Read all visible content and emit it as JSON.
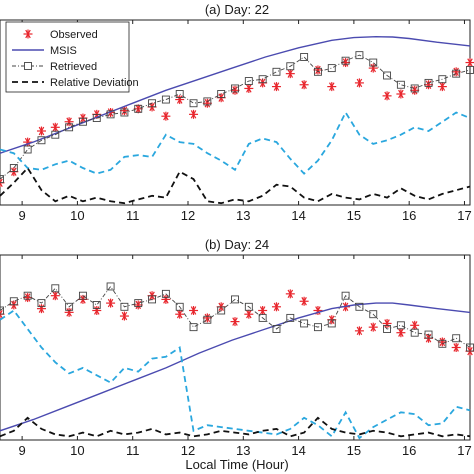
{
  "colors": {
    "observed": "#e8262d",
    "msis": "#4b4bb0",
    "retrieved": "#444444",
    "deviation_a": "#2aa7de",
    "deviation_b": "#111111",
    "axes": "#222222"
  },
  "chart_data": [
    {
      "type": "line",
      "title": "(a) Day: 22",
      "xlabel": "",
      "ylabel": "",
      "xlim": [
        8.6,
        17.1
      ],
      "ylim": [
        0,
        1
      ],
      "xticks": [
        9,
        10,
        11,
        12,
        13,
        14,
        15,
        16,
        17
      ],
      "xtick_labels": [
        "9",
        "10",
        "11",
        "12",
        "13",
        "14",
        "15",
        "16",
        "17"
      ],
      "grid": false,
      "legend": {
        "placement": "top-left",
        "entries": [
          "Observed",
          "MSIS",
          "Retrieved",
          "Relative Deviation"
        ]
      },
      "series": [
        {
          "name": "Observed",
          "style": "asterisk",
          "x": [
            8.6,
            8.85,
            9.1,
            9.35,
            9.6,
            9.85,
            10.1,
            10.35,
            10.6,
            10.85,
            11.1,
            11.35,
            11.6,
            11.85,
            12.1,
            12.35,
            12.6,
            12.85,
            13.1,
            13.35,
            13.6,
            13.85,
            14.1,
            14.35,
            14.6,
            14.85,
            15.1,
            15.35,
            15.6,
            15.85,
            16.1,
            16.35,
            16.6,
            16.85,
            17.1
          ],
          "y": [
            0.12,
            0.18,
            0.34,
            0.4,
            0.42,
            0.45,
            0.47,
            0.49,
            0.5,
            0.51,
            0.52,
            0.53,
            0.48,
            0.57,
            0.49,
            0.55,
            0.58,
            0.62,
            0.63,
            0.66,
            0.64,
            0.71,
            0.65,
            0.73,
            0.64,
            0.77,
            0.66,
            0.74,
            0.59,
            0.6,
            0.62,
            0.65,
            0.64,
            0.72,
            0.77
          ]
        },
        {
          "name": "MSIS",
          "style": "solid",
          "x": [
            8.6,
            9.2,
            9.8,
            10.4,
            11.0,
            11.6,
            12.2,
            12.8,
            13.4,
            14.0,
            14.6,
            15.0,
            15.4,
            15.7,
            16.0,
            16.5,
            17.1
          ],
          "y": [
            0.28,
            0.34,
            0.41,
            0.48,
            0.55,
            0.62,
            0.68,
            0.74,
            0.8,
            0.85,
            0.89,
            0.905,
            0.91,
            0.908,
            0.9,
            0.88,
            0.86
          ]
        },
        {
          "name": "Retrieved",
          "style": "dash-dot-square",
          "x": [
            8.6,
            8.85,
            9.1,
            9.35,
            9.6,
            9.85,
            10.1,
            10.35,
            10.6,
            10.85,
            11.1,
            11.35,
            11.6,
            11.85,
            12.1,
            12.35,
            12.6,
            12.85,
            13.1,
            13.35,
            13.6,
            13.85,
            14.1,
            14.35,
            14.6,
            14.85,
            15.1,
            15.35,
            15.6,
            15.85,
            16.1,
            16.35,
            16.6,
            16.85,
            17.1
          ],
          "y": [
            0.14,
            0.2,
            0.3,
            0.35,
            0.38,
            0.42,
            0.45,
            0.47,
            0.49,
            0.5,
            0.52,
            0.55,
            0.57,
            0.6,
            0.55,
            0.56,
            0.6,
            0.63,
            0.67,
            0.68,
            0.72,
            0.75,
            0.8,
            0.72,
            0.74,
            0.78,
            0.81,
            0.77,
            0.7,
            0.65,
            0.63,
            0.66,
            0.68,
            0.71,
            0.73
          ]
        },
        {
          "name": "Relative Deviation",
          "style": "dashed",
          "color_key": "deviation_a",
          "x": [
            8.6,
            8.85,
            9.1,
            9.35,
            9.6,
            9.85,
            10.1,
            10.35,
            10.6,
            10.85,
            11.1,
            11.35,
            11.6,
            11.85,
            12.1,
            12.35,
            12.6,
            12.85,
            13.1,
            13.35,
            13.6,
            13.85,
            14.1,
            14.35,
            14.6,
            14.85,
            15.1,
            15.35,
            15.6,
            15.85,
            16.1,
            16.35,
            16.6,
            16.85,
            17.1
          ],
          "y": [
            0.3,
            0.28,
            0.2,
            0.19,
            0.22,
            0.24,
            0.2,
            0.17,
            0.19,
            0.26,
            0.27,
            0.26,
            0.38,
            0.34,
            0.33,
            0.28,
            0.24,
            0.19,
            0.33,
            0.36,
            0.34,
            0.25,
            0.17,
            0.24,
            0.35,
            0.5,
            0.38,
            0.33,
            0.35,
            0.38,
            0.42,
            0.4,
            0.45,
            0.5,
            0.47
          ]
        },
        {
          "name": "Relative Deviation",
          "style": "dashed",
          "color_key": "deviation_b",
          "x": [
            8.6,
            8.85,
            9.1,
            9.35,
            9.6,
            9.85,
            10.1,
            10.35,
            10.6,
            10.85,
            11.1,
            11.35,
            11.6,
            11.85,
            12.1,
            12.35,
            12.6,
            12.85,
            13.1,
            13.35,
            13.6,
            13.85,
            14.1,
            14.35,
            14.6,
            14.85,
            15.1,
            15.35,
            15.6,
            15.85,
            16.1,
            16.35,
            16.6,
            16.85,
            17.1
          ],
          "y": [
            0.05,
            0.12,
            0.2,
            0.08,
            0.02,
            0.05,
            0.02,
            0.04,
            0.02,
            0.01,
            0.03,
            0.05,
            0.04,
            0.18,
            0.14,
            0.02,
            0.01,
            0.03,
            0.02,
            0.05,
            0.11,
            0.1,
            0.04,
            0.02,
            0.06,
            0.04,
            0.03,
            0.06,
            0.04,
            0.09,
            0.05,
            0.03,
            0.06,
            0.08,
            0.1
          ]
        }
      ]
    },
    {
      "type": "line",
      "title": "(b) Day: 24",
      "xlabel": "Local Time (Hour)",
      "ylabel": "",
      "xlim": [
        8.6,
        17.1
      ],
      "ylim": [
        0,
        1
      ],
      "xticks": [
        9,
        10,
        11,
        12,
        13,
        14,
        15,
        16,
        17
      ],
      "xtick_labels": [
        "9",
        "10",
        "11",
        "12",
        "13",
        "14",
        "15",
        "16",
        "17"
      ],
      "grid": false,
      "series": [
        {
          "name": "Observed",
          "style": "asterisk",
          "x": [
            8.6,
            8.85,
            9.1,
            9.35,
            9.6,
            9.85,
            10.1,
            10.35,
            10.6,
            10.85,
            11.1,
            11.35,
            11.6,
            11.85,
            12.1,
            12.35,
            12.6,
            12.85,
            13.1,
            13.35,
            13.6,
            13.85,
            14.1,
            14.35,
            14.6,
            14.85,
            15.1,
            15.35,
            15.6,
            15.85,
            16.1,
            16.35,
            16.6,
            16.85,
            17.1
          ],
          "y": [
            0.68,
            0.73,
            0.77,
            0.71,
            0.78,
            0.69,
            0.76,
            0.7,
            0.74,
            0.67,
            0.73,
            0.78,
            0.76,
            0.68,
            0.7,
            0.66,
            0.72,
            0.64,
            0.68,
            0.7,
            0.72,
            0.79,
            0.75,
            0.7,
            0.65,
            0.72,
            0.59,
            0.61,
            0.63,
            0.58,
            0.62,
            0.55,
            0.53,
            0.5,
            0.48
          ]
        },
        {
          "name": "MSIS",
          "style": "solid",
          "x": [
            8.6,
            9.2,
            9.8,
            10.4,
            11.0,
            11.6,
            12.2,
            12.8,
            13.4,
            14.0,
            14.6,
            15.0,
            15.4,
            15.7,
            16.0,
            16.5,
            17.1
          ],
          "y": [
            0.05,
            0.11,
            0.18,
            0.25,
            0.32,
            0.39,
            0.47,
            0.54,
            0.6,
            0.66,
            0.71,
            0.73,
            0.74,
            0.74,
            0.73,
            0.71,
            0.69
          ]
        },
        {
          "name": "Retrieved",
          "style": "dash-dot-square",
          "x": [
            8.6,
            8.85,
            9.1,
            9.35,
            9.6,
            9.85,
            10.1,
            10.35,
            10.6,
            10.85,
            11.1,
            11.35,
            11.6,
            11.85,
            12.1,
            12.35,
            12.6,
            12.85,
            13.1,
            13.35,
            13.6,
            13.85,
            14.1,
            14.35,
            14.6,
            14.85,
            15.1,
            15.35,
            15.6,
            15.85,
            16.1,
            16.35,
            16.6,
            16.85,
            17.1
          ],
          "y": [
            0.7,
            0.75,
            0.78,
            0.74,
            0.82,
            0.72,
            0.78,
            0.73,
            0.83,
            0.72,
            0.74,
            0.76,
            0.79,
            0.72,
            0.61,
            0.65,
            0.7,
            0.76,
            0.72,
            0.66,
            0.6,
            0.66,
            0.63,
            0.61,
            0.63,
            0.78,
            0.72,
            0.68,
            0.6,
            0.62,
            0.58,
            0.57,
            0.52,
            0.55,
            0.5
          ]
        },
        {
          "name": "Relative Deviation",
          "style": "dashed",
          "color_key": "deviation_a",
          "x": [
            8.6,
            8.85,
            9.1,
            9.35,
            9.6,
            9.85,
            10.1,
            10.35,
            10.6,
            10.85,
            11.1,
            11.35,
            11.6,
            11.85,
            12.1,
            12.35,
            12.6,
            12.85,
            13.1,
            13.35,
            13.6,
            13.85,
            14.1,
            14.35,
            14.6,
            14.85,
            15.1,
            15.35,
            15.6,
            15.85,
            16.1,
            16.35,
            16.6,
            16.85,
            17.1
          ],
          "y": [
            0.65,
            0.7,
            0.6,
            0.5,
            0.42,
            0.36,
            0.39,
            0.35,
            0.31,
            0.39,
            0.37,
            0.44,
            0.45,
            0.5,
            0.05,
            0.08,
            0.07,
            0.06,
            0.05,
            0.04,
            0.03,
            0.06,
            0.12,
            0.08,
            0.02,
            0.15,
            0.01,
            0.07,
            0.11,
            0.15,
            0.14,
            0.08,
            0.09,
            0.18,
            0.16
          ]
        },
        {
          "name": "Relative Deviation",
          "style": "dashed",
          "color_key": "deviation_b",
          "x": [
            8.6,
            8.85,
            9.1,
            9.35,
            9.6,
            9.85,
            10.1,
            10.35,
            10.6,
            10.85,
            11.1,
            11.35,
            11.6,
            11.85,
            12.1,
            12.35,
            12.6,
            12.85,
            13.1,
            13.35,
            13.6,
            13.85,
            14.1,
            14.35,
            14.6,
            14.85,
            15.1,
            15.35,
            15.6,
            15.85,
            16.1,
            16.35,
            16.6,
            16.85,
            17.1
          ],
          "y": [
            0.02,
            0.05,
            0.12,
            0.06,
            0.03,
            0.02,
            0.04,
            0.02,
            0.05,
            0.03,
            0.04,
            0.06,
            0.03,
            0.04,
            0.02,
            0.03,
            0.05,
            0.04,
            0.03,
            0.05,
            0.06,
            0.02,
            0.04,
            0.12,
            0.06,
            0.04,
            0.03,
            0.05,
            0.04,
            0.02,
            0.03,
            0.04,
            0.02,
            0.03,
            0.02
          ]
        }
      ]
    }
  ]
}
